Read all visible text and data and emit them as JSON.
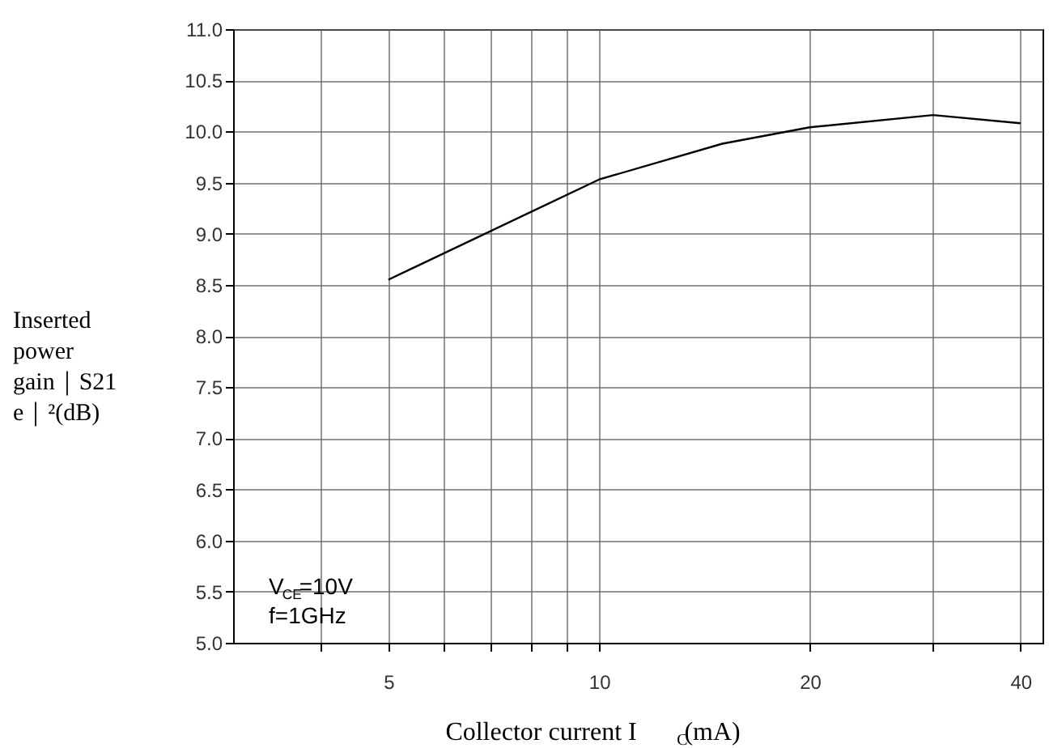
{
  "chart_data": {
    "type": "line",
    "xlabel": "Collector current I$_{C}$(mA)",
    "ylabel": "Inserted power gain｜S21e｜²(dB)",
    "annotations": [
      "V$_{CE}$=10V",
      "f=1GHz"
    ],
    "x": [
      5,
      10,
      15,
      20,
      30,
      40
    ],
    "series": [
      {
        "color": "#000000",
        "values": [
          8.55,
          9.53,
          9.88,
          10.04,
          10.16,
          10.08
        ]
      }
    ],
    "log": "x",
    "xlim": [
      3,
      43
    ],
    "xticks": [
      {
        "value": 4,
        "label": null
      },
      5,
      {
        "value": 6,
        "label": null
      },
      {
        "value": 7,
        "label": null
      },
      {
        "value": 8,
        "label": null
      },
      {
        "value": 9,
        "label": null
      },
      10,
      20,
      {
        "value": 30,
        "label": null
      },
      40
    ],
    "ylim": [
      5.0,
      11.0
    ],
    "yticks": [
      {
        "value": 5.0,
        "label": "5.0"
      },
      {
        "value": 5.5,
        "label": "5.5"
      },
      {
        "value": 6.0,
        "label": "6.0"
      },
      {
        "value": 6.5,
        "label": "6.5"
      },
      {
        "value": 7.0,
        "label": "7.0"
      },
      {
        "value": 7.5,
        "label": "7.5"
      },
      {
        "value": 8.0,
        "label": "8.0"
      },
      {
        "value": 8.5,
        "label": "8.5"
      },
      {
        "value": 9.0,
        "label": "9.0"
      },
      {
        "value": 9.5,
        "label": "9.5"
      },
      {
        "value": 10.0,
        "label": "10.0"
      },
      {
        "value": 10.5,
        "label": "10.5"
      },
      {
        "value": 11.0,
        "label": "11.0"
      }
    ],
    "grid": true,
    "marker": "none",
    "line_style": "solid"
  }
}
